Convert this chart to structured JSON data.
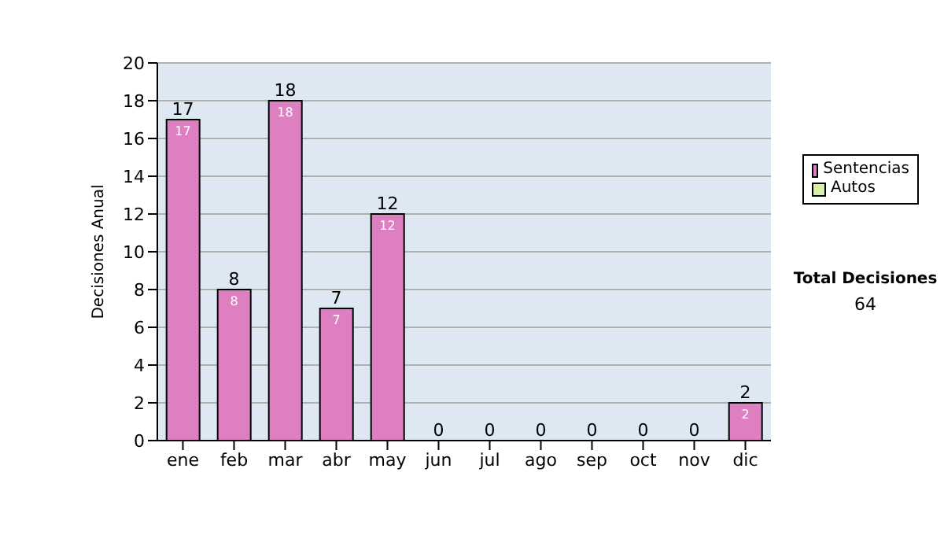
{
  "chart_data": {
    "type": "bar",
    "stacked": true,
    "ylabel": "Decisiones Anual",
    "categories": [
      "ene",
      "feb",
      "mar",
      "abr",
      "may",
      "jun",
      "jul",
      "ago",
      "sep",
      "oct",
      "nov",
      "dic"
    ],
    "series": [
      {
        "name": "Sentencias",
        "color": "#dd7fc0",
        "values": [
          17,
          8,
          18,
          7,
          12,
          0,
          0,
          0,
          0,
          0,
          0,
          2
        ],
        "value_labels": [
          "17",
          "8",
          "18",
          "7",
          "12",
          null,
          null,
          null,
          null,
          null,
          null,
          "2"
        ]
      },
      {
        "name": "Autos",
        "color": "#d9f0a8",
        "values": [
          0,
          0,
          0,
          0,
          0,
          0,
          0,
          0,
          0,
          0,
          0,
          0
        ]
      }
    ],
    "totals": [
      "17",
      "8",
      "18",
      "7",
      "12",
      "0",
      "0",
      "0",
      "0",
      "0",
      "0",
      "2"
    ],
    "ylim": [
      0,
      20
    ],
    "yticks": [
      0,
      2,
      4,
      6,
      8,
      10,
      12,
      14,
      16,
      18,
      20
    ],
    "grid": "y",
    "legend": "right",
    "annotations": [
      "Total Decisiones",
      "64"
    ]
  }
}
